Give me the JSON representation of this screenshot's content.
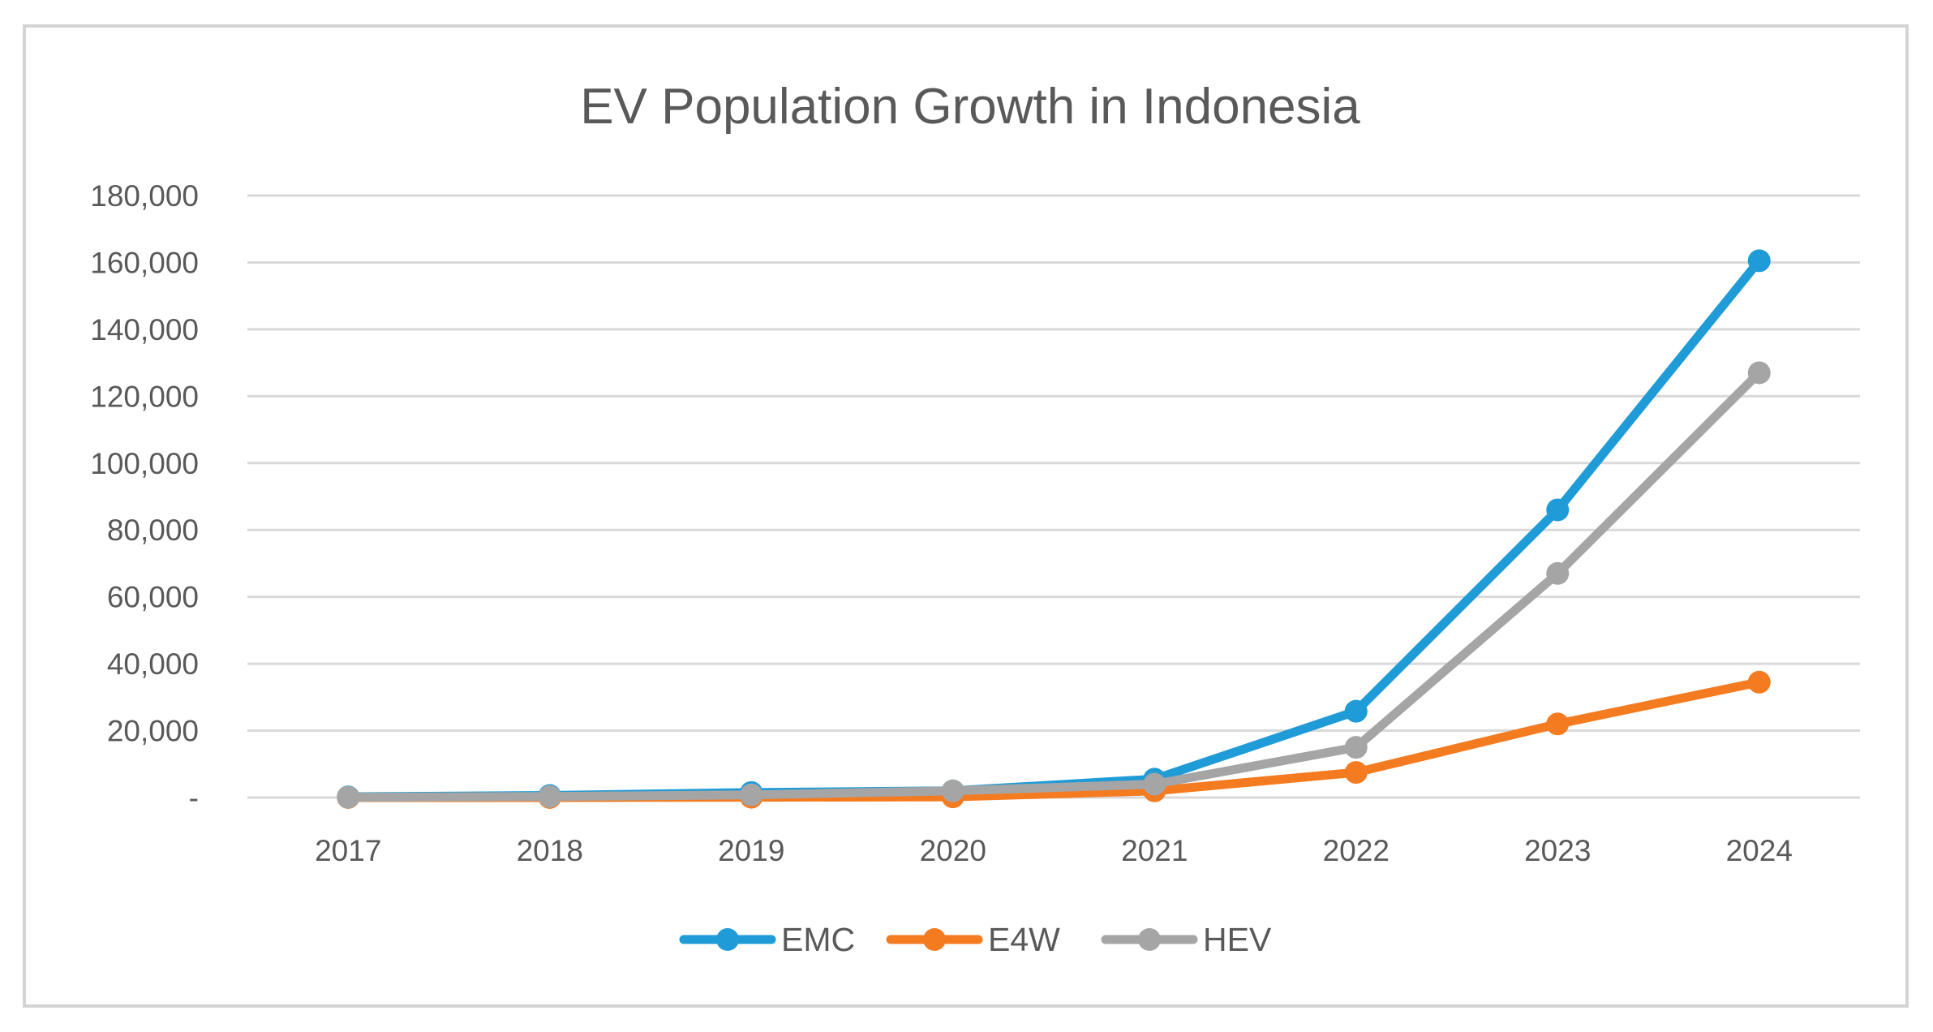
{
  "chart_data": {
    "type": "line",
    "title": "EV Population Growth in Indonesia",
    "xlabel": "",
    "ylabel": "",
    "categories": [
      "2017",
      "2018",
      "2019",
      "2020",
      "2021",
      "2022",
      "2023",
      "2024"
    ],
    "ylim": [
      0,
      180000
    ],
    "yticks": [
      0,
      20000,
      40000,
      60000,
      80000,
      100000,
      120000,
      140000,
      160000,
      180000
    ],
    "ytick_labels": [
      "-",
      "20,000",
      "40,000",
      "60,000",
      "80,000",
      "100,000",
      "120,000",
      "140,000",
      "160,000",
      "180,000"
    ],
    "grid": true,
    "legend_position": "bottom",
    "series": [
      {
        "name": "EMC",
        "color": "#1f9bd7",
        "values": [
          200,
          600,
          1500,
          2000,
          5500,
          25800,
          86000,
          160500
        ]
      },
      {
        "name": "E4W",
        "color": "#f47b20",
        "values": [
          0,
          0,
          100,
          200,
          2000,
          7500,
          22000,
          34500
        ]
      },
      {
        "name": "HEV",
        "color": "#a5a5a5",
        "values": [
          100,
          300,
          800,
          2000,
          4000,
          15000,
          67000,
          127000
        ]
      }
    ]
  }
}
